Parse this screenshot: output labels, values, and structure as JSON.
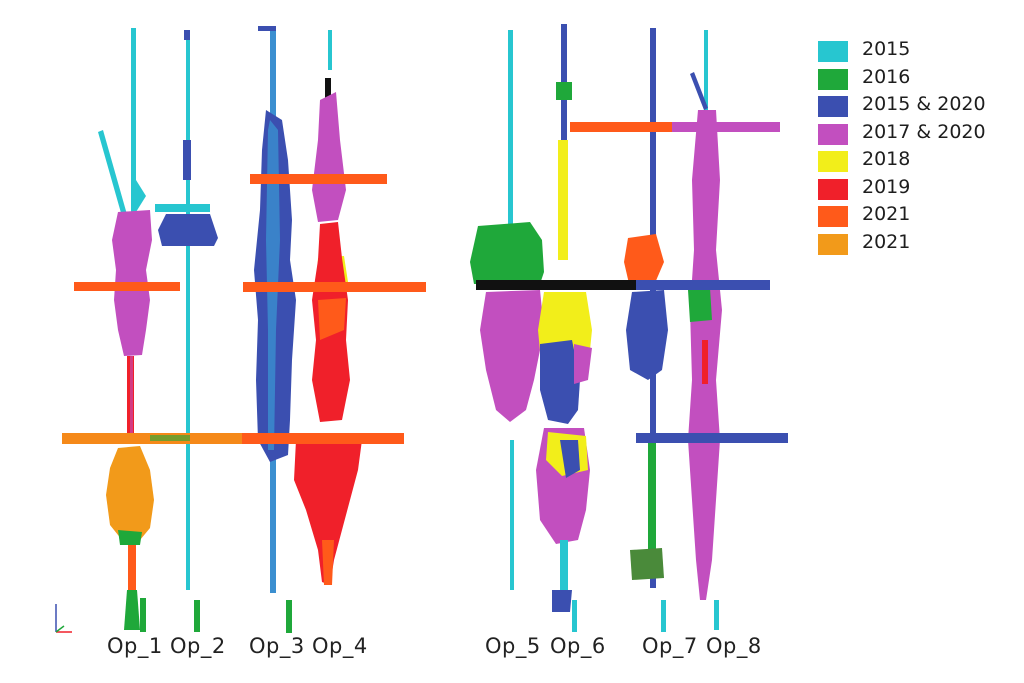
{
  "legend": {
    "items": [
      {
        "label": "2015",
        "color": "#27c6d0"
      },
      {
        "label": "2016",
        "color": "#1fa83a"
      },
      {
        "label": "2015 & 2020",
        "color": "#3b4fb0"
      },
      {
        "label": "2017 & 2020",
        "color": "#c24fbf"
      },
      {
        "label": "2018",
        "color": "#f2ee1a"
      },
      {
        "label": "2019",
        "color": "#f0202a"
      },
      {
        "label": "2021",
        "color": "#ff5a1a"
      },
      {
        "label": "2021",
        "color": "#f29a1a"
      }
    ]
  },
  "wells": [
    {
      "label": "Op_1"
    },
    {
      "label": "Op_2"
    },
    {
      "label": "Op_3"
    },
    {
      "label": "Op_4"
    },
    {
      "label": "Op_5"
    },
    {
      "label": "Op_6"
    },
    {
      "label": "Op_7"
    },
    {
      "label": "Op_8"
    }
  ],
  "colors": {
    "c2015": "#27c6d0",
    "c2016": "#1fa83a",
    "c2015_2020": "#3b4fb0",
    "c2017_2020": "#c24fbf",
    "c2018": "#f2ee1a",
    "c2019": "#f0202a",
    "c2021a": "#ff5a1a",
    "c2021b": "#f29a1a",
    "black": "#111111"
  }
}
